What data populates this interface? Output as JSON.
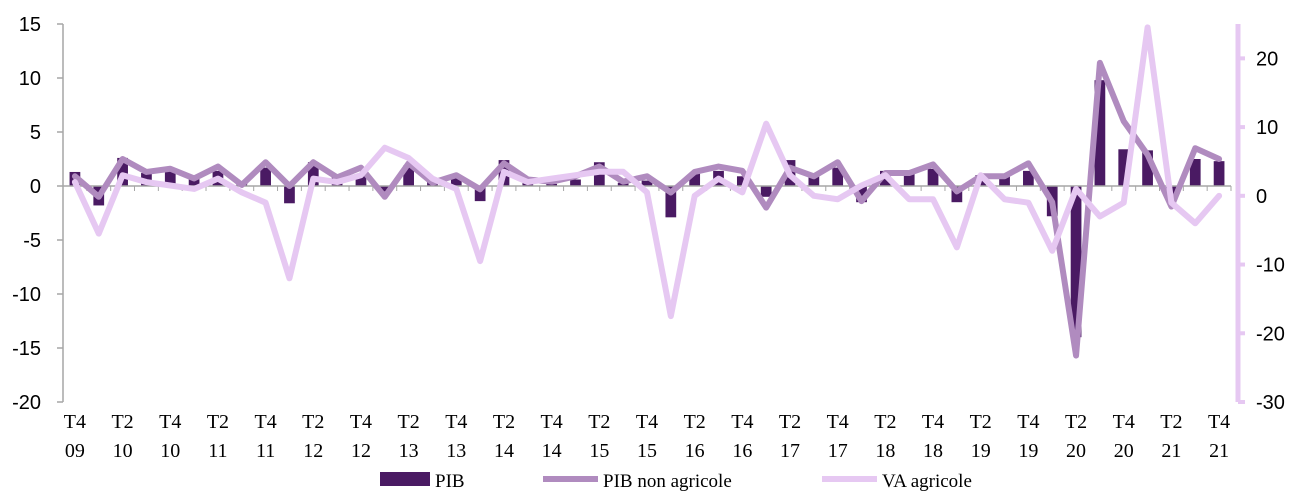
{
  "chart_data": {
    "type": "bar+line",
    "title": "",
    "legend": {
      "placement": "bottom"
    },
    "grid": false,
    "x": [
      "T4 09",
      "T1 10",
      "T2 10",
      "T3 10",
      "T4 10",
      "T1 11",
      "T2 11",
      "T3 11",
      "T4 11",
      "T1 12",
      "T2 12",
      "T3 12",
      "T4 12",
      "T1 13",
      "T2 13",
      "T3 13",
      "T4 13",
      "T1 14",
      "T2 14",
      "T3 14",
      "T4 14",
      "T1 15",
      "T2 15",
      "T3 15",
      "T4 15",
      "T1 16",
      "T2 16",
      "T3 16",
      "T4 16",
      "T1 17",
      "T2 17",
      "T3 17",
      "T4 17",
      "T1 18",
      "T2 18",
      "T3 18",
      "T4 18",
      "T1 19",
      "T2 19",
      "T3 19",
      "T4 19",
      "T1 20",
      "T2 20",
      "T3 20",
      "T4 20",
      "T1 21",
      "T2 21",
      "T3 21",
      "T4 21"
    ],
    "x_tick_labels": [
      {
        "line1": "T4",
        "line2": "09"
      },
      {
        "line1": "T2",
        "line2": "10"
      },
      {
        "line1": "T4",
        "line2": "10"
      },
      {
        "line1": "T2",
        "line2": "11"
      },
      {
        "line1": "T4",
        "line2": "11"
      },
      {
        "line1": "T2",
        "line2": "12"
      },
      {
        "line1": "T4",
        "line2": "12"
      },
      {
        "line1": "T2",
        "line2": "13"
      },
      {
        "line1": "T4",
        "line2": "13"
      },
      {
        "line1": "T2",
        "line2": "14"
      },
      {
        "line1": "T4",
        "line2": "14"
      },
      {
        "line1": "T2",
        "line2": "15"
      },
      {
        "line1": "T4",
        "line2": "15"
      },
      {
        "line1": "T2",
        "line2": "16"
      },
      {
        "line1": "T4",
        "line2": "16"
      },
      {
        "line1": "T2",
        "line2": "17"
      },
      {
        "line1": "T4",
        "line2": "17"
      },
      {
        "line1": "T2",
        "line2": "18"
      },
      {
        "line1": "T4",
        "line2": "18"
      },
      {
        "line1": "T2",
        "line2": "19"
      },
      {
        "line1": "T4",
        "line2": "19"
      },
      {
        "line1": "T2",
        "line2": "20"
      },
      {
        "line1": "T4",
        "line2": "20"
      },
      {
        "line1": "T2",
        "line2": "21"
      },
      {
        "line1": "T4",
        "line2": "21"
      }
    ],
    "y_left": {
      "min": -20,
      "max": 15,
      "ticks": [
        "15",
        "10",
        "5",
        "0",
        "-5",
        "-10",
        "-15",
        "-20"
      ]
    },
    "y_right": {
      "min": -30,
      "max": 25,
      "ticks": [
        "20",
        "10",
        "0",
        "-10",
        "-20",
        "-30"
      ]
    },
    "series": [
      {
        "name": "PIB",
        "type": "bar",
        "axis": "left",
        "color": "#4a1a63",
        "values": [
          1.3,
          -1.8,
          2.6,
          1.2,
          1.4,
          0.7,
          1.4,
          0.3,
          1.7,
          -1.6,
          2.2,
          0.8,
          0.9,
          -0.5,
          1.9,
          0.4,
          0.9,
          -1.4,
          2.4,
          0.3,
          0.2,
          0.6,
          2.2,
          0.3,
          0.5,
          -2.9,
          1.2,
          1.4,
          0.9,
          -1.0,
          2.4,
          1.0,
          1.7,
          -1.5,
          1.4,
          1.4,
          1.6,
          -1.5,
          1.0,
          1.0,
          1.4,
          -2.8,
          -14.0,
          9.8,
          3.4,
          3.3,
          -1.2,
          2.5,
          2.3
        ]
      },
      {
        "name": "PIB non agricole",
        "type": "line",
        "axis": "left",
        "color": "#b08bbf",
        "values": [
          0.9,
          -1.0,
          2.5,
          1.3,
          1.6,
          0.7,
          1.8,
          0.1,
          2.2,
          0.0,
          2.2,
          0.8,
          1.7,
          -1.0,
          2.1,
          0.3,
          1.0,
          -0.3,
          2.1,
          0.6,
          0.4,
          0.9,
          1.8,
          0.4,
          0.9,
          -0.6,
          1.3,
          1.8,
          1.4,
          -2.0,
          1.7,
          0.9,
          2.2,
          -1.4,
          1.2,
          1.2,
          2.0,
          -0.5,
          0.9,
          0.9,
          2.1,
          -1.5,
          -15.7,
          11.4,
          6.0,
          2.9,
          -1.9,
          3.5,
          2.5
        ]
      },
      {
        "name": "VA agricole",
        "type": "line",
        "axis": "right",
        "color": "#e6c8f2",
        "values": [
          2.0,
          -5.5,
          3.0,
          2.0,
          1.5,
          1.0,
          2.5,
          0.5,
          -1.0,
          -12.0,
          2.5,
          2.0,
          3.0,
          7.0,
          5.5,
          2.5,
          1.0,
          -9.5,
          3.5,
          2.0,
          2.5,
          3.0,
          3.5,
          3.5,
          0.5,
          -17.5,
          0.0,
          2.5,
          0.5,
          10.5,
          3.0,
          0.0,
          -0.5,
          1.5,
          3.0,
          -0.5,
          -0.5,
          -7.5,
          3.0,
          -0.5,
          -1.0,
          -8.0,
          1.0,
          -3.0,
          -1.0,
          24.5,
          -1.0,
          -4.0,
          0.0
        ]
      }
    ]
  }
}
